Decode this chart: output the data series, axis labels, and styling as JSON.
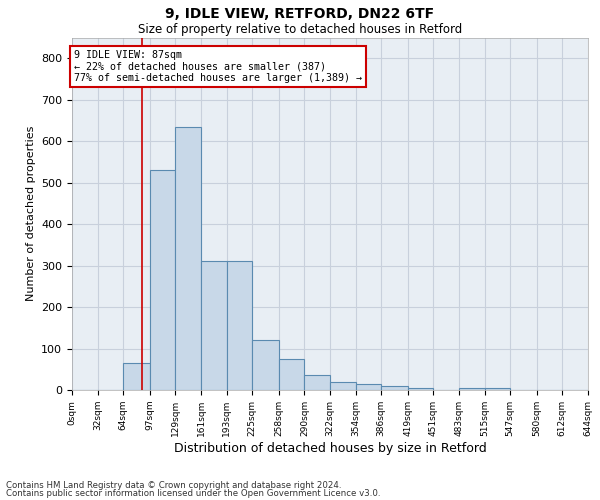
{
  "title1": "9, IDLE VIEW, RETFORD, DN22 6TF",
  "title2": "Size of property relative to detached houses in Retford",
  "xlabel": "Distribution of detached houses by size in Retford",
  "ylabel": "Number of detached properties",
  "footnote1": "Contains HM Land Registry data © Crown copyright and database right 2024.",
  "footnote2": "Contains public sector information licensed under the Open Government Licence v3.0.",
  "bar_left_edges": [
    0,
    32,
    64,
    97,
    129,
    161,
    193,
    225,
    258,
    290,
    322,
    354,
    386,
    419,
    451,
    483,
    515,
    547,
    580,
    612
  ],
  "bar_heights": [
    0,
    0,
    65,
    530,
    635,
    310,
    310,
    120,
    75,
    35,
    20,
    15,
    10,
    5,
    0,
    5,
    5,
    0,
    0,
    0
  ],
  "bar_widths": [
    32,
    32,
    33,
    32,
    32,
    32,
    32,
    33,
    32,
    32,
    32,
    32,
    33,
    32,
    32,
    32,
    32,
    33,
    32,
    32
  ],
  "tick_labels": [
    "0sqm",
    "32sqm",
    "64sqm",
    "97sqm",
    "129sqm",
    "161sqm",
    "193sqm",
    "225sqm",
    "258sqm",
    "290sqm",
    "322sqm",
    "354sqm",
    "386sqm",
    "419sqm",
    "451sqm",
    "483sqm",
    "515sqm",
    "547sqm",
    "580sqm",
    "612sqm",
    "644sqm"
  ],
  "bar_color": "#c8d8e8",
  "bar_edge_color": "#5a8ab0",
  "grid_color": "#c8d0dc",
  "bg_color": "#e8eef4",
  "vline_x": 87,
  "vline_color": "#cc0000",
  "annotation_text": "9 IDLE VIEW: 87sqm\n← 22% of detached houses are smaller (387)\n77% of semi-detached houses are larger (1,389) →",
  "annotation_box_color": "#ffffff",
  "annotation_box_edgecolor": "#cc0000",
  "ylim": [
    0,
    850
  ],
  "yticks": [
    0,
    100,
    200,
    300,
    400,
    500,
    600,
    700,
    800
  ]
}
